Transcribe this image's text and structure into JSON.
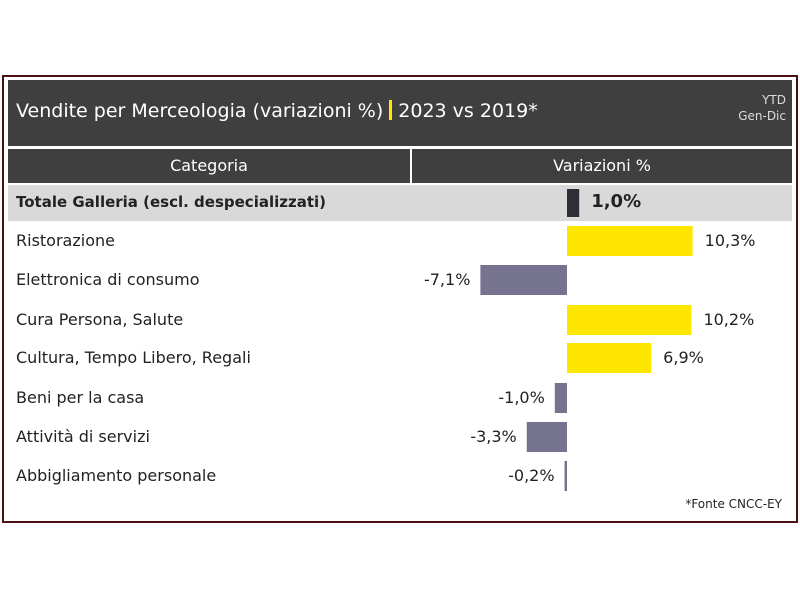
{
  "title": {
    "main": "Vendite per Merceologia (variazioni %)",
    "compare": "2023 vs 2019*",
    "period_line1": "YTD",
    "period_line2": "Gen-Dic"
  },
  "headers": {
    "category": "Categoria",
    "value": "Variazioni %"
  },
  "footnote": "*Fonte CNCC-EY",
  "colors": {
    "positive": "#ffe600",
    "negative": "#75738f",
    "total": "#2e2e38",
    "header": "#3f3f3f",
    "total_row": "#d9d9d9"
  },
  "chart_data": {
    "type": "bar",
    "orientation": "horizontal",
    "categories": [
      "Totale Galleria (escl. despecializzati)",
      "Ristorazione",
      "Elettronica di consumo",
      "Cura Persona, Salute",
      "Cultura, Tempo Libero, Regali",
      "Beni per la casa",
      "Attività di servizi",
      "Abbigliamento personale"
    ],
    "values": [
      1.0,
      10.3,
      -7.1,
      10.2,
      6.9,
      -1.0,
      -3.3,
      -0.2
    ],
    "labels": [
      "1,0%",
      "10,3%",
      "-7,1%",
      "10,2%",
      "6,9%",
      "-1,0%",
      "-3,3%",
      "-0,2%"
    ],
    "title": "Vendite per Merceologia (variazioni %) | 2023 vs 2019*",
    "xlabel": "Variazioni %",
    "ylabel": "Categoria"
  }
}
